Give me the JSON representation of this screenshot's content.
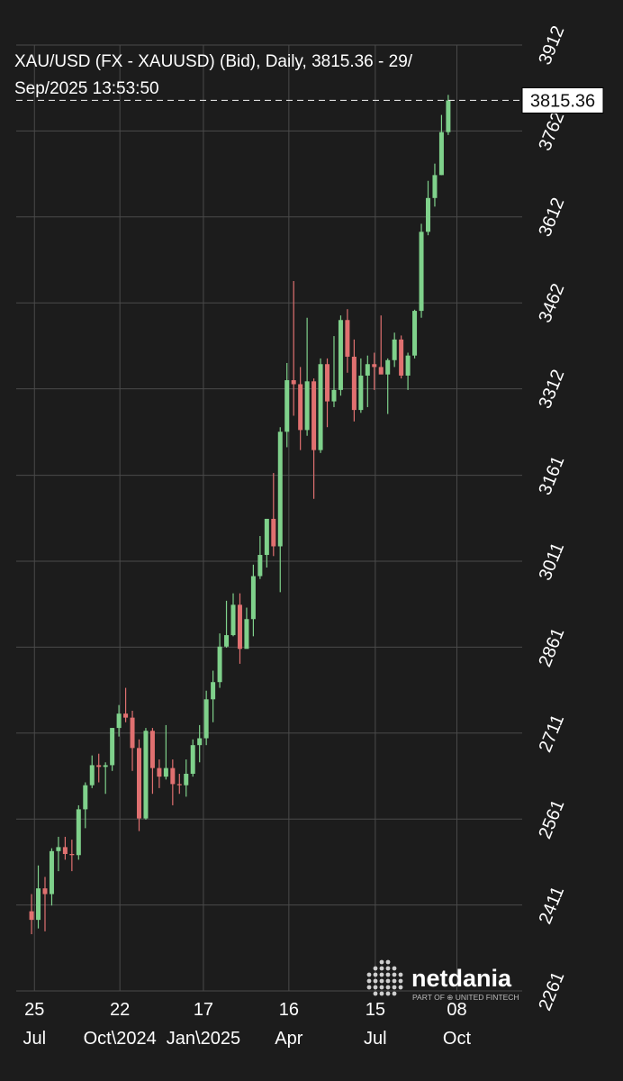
{
  "chart_data": {
    "type": "candlestick",
    "title": [
      "XAU/USD (FX - XAUUSD) (Bid), Daily, 3815.36 - 29/",
      "Sep/2025 13:53:50"
    ],
    "last_price": 3815.36,
    "up_color": "#7fd18b",
    "down_color": "#e07070",
    "grid": true,
    "xlim": [
      "2024-07-06",
      "2025-12-15"
    ],
    "xticks": [
      {
        "value": "2024-07-25",
        "label": [
          "25",
          "Jul"
        ]
      },
      {
        "value": "2024-10-22",
        "label": [
          "22",
          "Oct\\2024"
        ]
      },
      {
        "value": "2025-01-17",
        "label": [
          "17",
          "Jan\\2025"
        ]
      },
      {
        "value": "2025-04-16",
        "label": [
          "16",
          "Apr"
        ]
      },
      {
        "value": "2025-07-15",
        "label": [
          "15",
          "Jul"
        ]
      },
      {
        "value": "2025-10-08",
        "label": [
          "08",
          "Oct"
        ]
      }
    ],
    "ylim": [
      2261,
      3912
    ],
    "yticks": [
      2261,
      2411,
      2561,
      2711,
      2861,
      3011,
      3161,
      3312,
      3462,
      3612,
      3762,
      3912
    ],
    "x": [
      "2024-07-22",
      "2024-07-29",
      "2024-08-05",
      "2024-08-12",
      "2024-08-19",
      "2024-08-26",
      "2024-09-02",
      "2024-09-09",
      "2024-09-16",
      "2024-09-23",
      "2024-09-30",
      "2024-10-07",
      "2024-10-14",
      "2024-10-21",
      "2024-10-28",
      "2024-11-04",
      "2024-11-11",
      "2024-11-18",
      "2024-11-25",
      "2024-12-02",
      "2024-12-09",
      "2024-12-16",
      "2024-12-23",
      "2024-12-30",
      "2025-01-06",
      "2025-01-13",
      "2025-01-20",
      "2025-01-27",
      "2025-02-03",
      "2025-02-10",
      "2025-02-17",
      "2025-02-24",
      "2025-03-03",
      "2025-03-10",
      "2025-03-17",
      "2025-03-24",
      "2025-03-31",
      "2025-04-07",
      "2025-04-14",
      "2025-04-21",
      "2025-04-28",
      "2025-05-05",
      "2025-05-12",
      "2025-05-19",
      "2025-05-26",
      "2025-06-02",
      "2025-06-09",
      "2025-06-16",
      "2025-06-23",
      "2025-06-30",
      "2025-07-07",
      "2025-07-14",
      "2025-07-21",
      "2025-07-28",
      "2025-08-04",
      "2025-08-11",
      "2025-08-18",
      "2025-08-25",
      "2025-09-01",
      "2025-09-08",
      "2025-09-15",
      "2025-09-22",
      "2025-09-29"
    ],
    "open": [
      2400,
      2385,
      2440,
      2430,
      2505,
      2512,
      2500,
      2498,
      2578,
      2620,
      2655,
      2652,
      2655,
      2720,
      2745,
      2738,
      2685,
      2562,
      2715,
      2650,
      2635,
      2650,
      2622,
      2620,
      2640,
      2690,
      2702,
      2770,
      2800,
      2862,
      2882,
      2935,
      2858,
      2910,
      2985,
      3022,
      3085,
      3037,
      3237,
      3327,
      3320,
      3240,
      3325,
      3205,
      3355,
      3290,
      3310,
      3432,
      3368,
      3275,
      3335,
      3355,
      3350,
      3337,
      3362,
      3398,
      3335,
      3370,
      3448,
      3586,
      3645,
      3685,
      3760
    ],
    "high": [
      2430,
      2480,
      2460,
      2510,
      2530,
      2530,
      2525,
      2585,
      2625,
      2672,
      2675,
      2660,
      2720,
      2760,
      2790,
      2750,
      2700,
      2720,
      2720,
      2665,
      2725,
      2665,
      2640,
      2665,
      2700,
      2725,
      2785,
      2820,
      2885,
      2942,
      2955,
      2955,
      2930,
      3005,
      3055,
      3085,
      3165,
      3245,
      3357,
      3500,
      3350,
      3436,
      3330,
      3365,
      3365,
      3404,
      3440,
      3451,
      3398,
      3365,
      3370,
      3375,
      3440,
      3365,
      3410,
      3405,
      3375,
      3450,
      3600,
      3675,
      3705,
      3790,
      3825
    ],
    "low": [
      2360,
      2370,
      2365,
      2410,
      2470,
      2490,
      2470,
      2490,
      2545,
      2615,
      2625,
      2605,
      2645,
      2705,
      2730,
      2645,
      2540,
      2560,
      2605,
      2615,
      2630,
      2585,
      2605,
      2600,
      2635,
      2660,
      2690,
      2730,
      2790,
      2860,
      2880,
      2832,
      2860,
      2880,
      2980,
      3000,
      3020,
      2957,
      3210,
      3265,
      3205,
      3230,
      3120,
      3200,
      3245,
      3280,
      3300,
      3340,
      3255,
      3270,
      3280,
      3310,
      3340,
      3268,
      3350,
      3330,
      3310,
      3365,
      3436,
      3580,
      3630,
      3685,
      3755
    ],
    "close": [
      2385,
      2440,
      2430,
      2505,
      2512,
      2500,
      2498,
      2578,
      2620,
      2655,
      2652,
      2655,
      2720,
      2745,
      2738,
      2685,
      2562,
      2715,
      2650,
      2635,
      2650,
      2622,
      2620,
      2640,
      2690,
      2702,
      2770,
      2800,
      2862,
      2882,
      2935,
      2858,
      2910,
      2985,
      3022,
      3085,
      3037,
      3237,
      3327,
      3320,
      3240,
      3325,
      3205,
      3355,
      3290,
      3310,
      3432,
      3368,
      3275,
      3335,
      3355,
      3350,
      3337,
      3362,
      3398,
      3335,
      3370,
      3448,
      3586,
      3645,
      3685,
      3760,
      3815.36
    ]
  },
  "branding": {
    "name": "netdania",
    "tagline": "PART OF ⊕ UNITED FINTECH"
  }
}
